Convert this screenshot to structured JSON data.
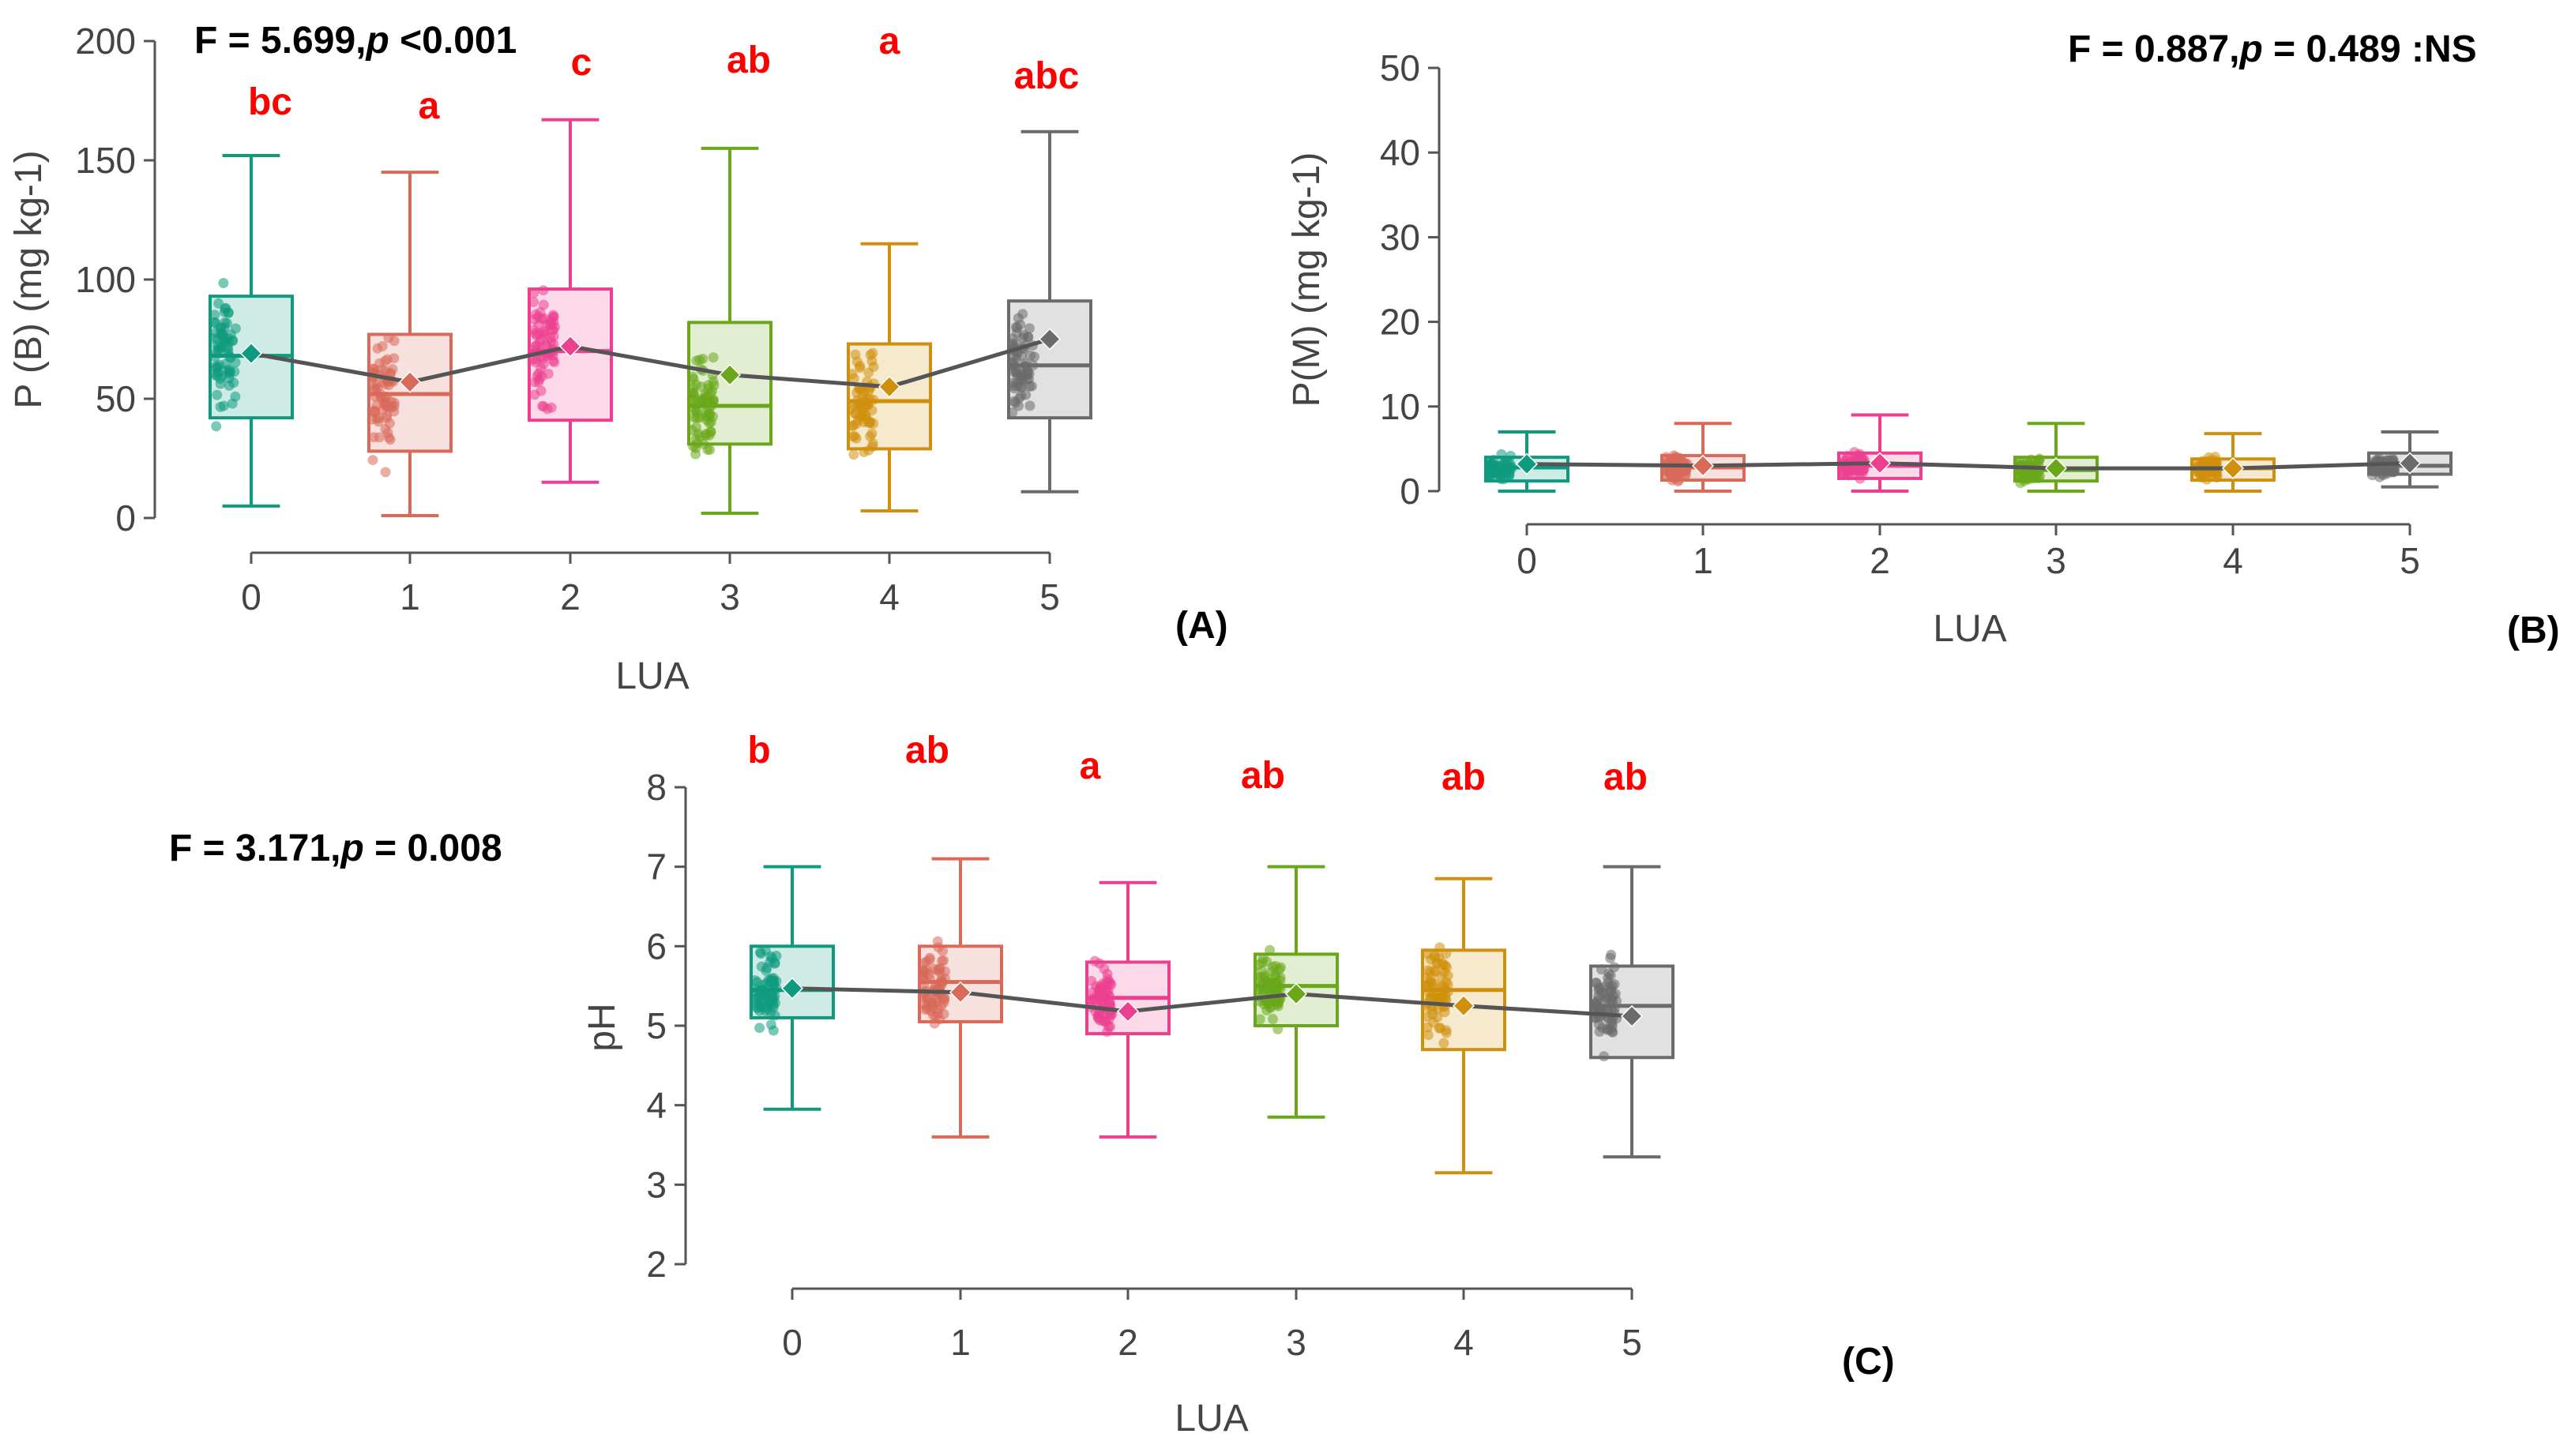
{
  "colors": [
    "#0e9a7f",
    "#d96a5a",
    "#ec3f8f",
    "#6aa81a",
    "#d08f0c",
    "#6b6b6b"
  ],
  "chart_data": [
    {
      "type": "boxplot",
      "panel_label": "(A)",
      "stat_bold": "F = 5.699,",
      "stat_p": "p",
      "stat_rest": " <0.001",
      "xlabel": "LUA",
      "ylabel": "P (B) (mg kg-1)",
      "ylim": [
        0,
        200
      ],
      "yticks": [
        0,
        50,
        100,
        150,
        200
      ],
      "categories": [
        "0",
        "1",
        "2",
        "3",
        "4",
        "5"
      ],
      "letters": [
        "bc",
        "a",
        "c",
        "ab",
        "a",
        "abc"
      ],
      "boxes": [
        {
          "min": 5,
          "q1": 42,
          "median": 68,
          "q3": 93,
          "max": 152,
          "mean": 69
        },
        {
          "min": 1,
          "q1": 28,
          "median": 52,
          "q3": 77,
          "max": 145,
          "mean": 57
        },
        {
          "min": 15,
          "q1": 41,
          "median": 70,
          "q3": 96,
          "max": 167,
          "mean": 72
        },
        {
          "min": 2,
          "q1": 31,
          "median": 47,
          "q3": 82,
          "max": 155,
          "mean": 60
        },
        {
          "min": 3,
          "q1": 29,
          "median": 49,
          "q3": 73,
          "max": 115,
          "mean": 55
        },
        {
          "min": 11,
          "q1": 42,
          "median": 64,
          "q3": 91,
          "max": 162,
          "mean": 75
        }
      ]
    },
    {
      "type": "boxplot",
      "panel_label": "(B)",
      "stat_bold": "F = 0.887,",
      "stat_p": "p",
      "stat_rest": " = 0.489 :NS",
      "xlabel": "LUA",
      "ylabel": "P(M) (mg kg-1)",
      "ylim": [
        0,
        50
      ],
      "yticks": [
        0,
        10,
        20,
        30,
        40,
        50
      ],
      "categories": [
        "0",
        "1",
        "2",
        "3",
        "4",
        "5"
      ],
      "letters": [],
      "boxes": [
        {
          "min": 0,
          "q1": 1.2,
          "median": 2.8,
          "q3": 4,
          "max": 7,
          "mean": 3.2
        },
        {
          "min": 0,
          "q1": 1.3,
          "median": 2.8,
          "q3": 4.2,
          "max": 8,
          "mean": 3.0
        },
        {
          "min": 0,
          "q1": 1.5,
          "median": 3.0,
          "q3": 4.5,
          "max": 9,
          "mean": 3.3
        },
        {
          "min": 0,
          "q1": 1.2,
          "median": 2.5,
          "q3": 4,
          "max": 8,
          "mean": 2.7
        },
        {
          "min": 0,
          "q1": 1.3,
          "median": 2.7,
          "q3": 3.8,
          "max": 6.8,
          "mean": 2.7
        },
        {
          "min": 0.5,
          "q1": 2,
          "median": 3,
          "q3": 4.5,
          "max": 7,
          "mean": 3.3
        }
      ]
    },
    {
      "type": "boxplot",
      "panel_label": "(C)",
      "stat_bold": "F = 3.171,",
      "stat_p": "p",
      "stat_rest": " = 0.008",
      "xlabel": "LUA",
      "ylabel": "pH",
      "ylim": [
        2,
        8
      ],
      "yticks": [
        2,
        3,
        4,
        5,
        6,
        7,
        8
      ],
      "categories": [
        "0",
        "1",
        "2",
        "3",
        "4",
        "5"
      ],
      "letters": [
        "b",
        "ab",
        "a",
        "ab",
        "ab",
        "ab"
      ],
      "boxes": [
        {
          "min": 3.95,
          "q1": 5.1,
          "median": 5.45,
          "q3": 6.0,
          "max": 7.0,
          "mean": 5.47
        },
        {
          "min": 3.6,
          "q1": 5.05,
          "median": 5.55,
          "q3": 6.0,
          "max": 7.1,
          "mean": 5.42
        },
        {
          "min": 3.6,
          "q1": 4.9,
          "median": 5.35,
          "q3": 5.8,
          "max": 6.8,
          "mean": 5.18
        },
        {
          "min": 3.85,
          "q1": 5.0,
          "median": 5.5,
          "q3": 5.9,
          "max": 7.0,
          "mean": 5.4
        },
        {
          "min": 3.15,
          "q1": 4.7,
          "median": 5.45,
          "q3": 5.95,
          "max": 6.85,
          "mean": 5.25
        },
        {
          "min": 3.35,
          "q1": 4.6,
          "median": 5.25,
          "q3": 5.75,
          "max": 7.0,
          "mean": 5.12
        }
      ]
    }
  ]
}
